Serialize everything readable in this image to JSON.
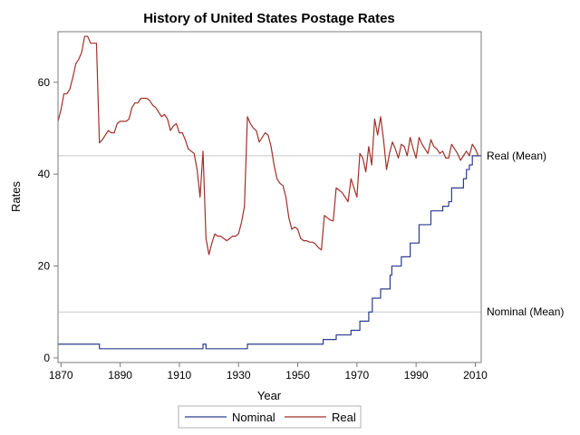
{
  "colors": {
    "nominal": "#2a3d8f",
    "real": "#a0302a",
    "reference": "#c8c8c8",
    "axis": "#7a7a7a"
  },
  "chart_data": {
    "type": "line",
    "title": "History of United States Postage Rates",
    "xlabel": "Year",
    "ylabel": "Rates",
    "xlim": [
      1869,
      2012
    ],
    "ylim": [
      -1,
      71
    ],
    "x_ticks": [
      1870,
      1890,
      1910,
      1930,
      1950,
      1970,
      1990,
      2010
    ],
    "y_ticks": [
      0,
      20,
      40,
      60
    ],
    "grid": false,
    "legend_position": "bottom",
    "reference_lines": [
      {
        "label": "Real (Mean)",
        "y": 44
      },
      {
        "label": "Nominal (Mean)",
        "y": 10
      }
    ],
    "series": [
      {
        "name": "Nominal",
        "color": "#2a3d8f",
        "step": true,
        "points": [
          [
            1869,
            3
          ],
          [
            1883,
            2
          ],
          [
            1917,
            2
          ],
          [
            1918,
            3
          ],
          [
            1919,
            2
          ],
          [
            1932,
            2
          ],
          [
            1933,
            3
          ],
          [
            1958,
            3
          ],
          [
            1958.6,
            4
          ],
          [
            1963,
            5
          ],
          [
            1968,
            6
          ],
          [
            1971,
            8
          ],
          [
            1974,
            10
          ],
          [
            1975.2,
            13
          ],
          [
            1978,
            15
          ],
          [
            1981.2,
            18
          ],
          [
            1981.8,
            20
          ],
          [
            1985,
            22
          ],
          [
            1988,
            25
          ],
          [
            1991,
            29
          ],
          [
            1995,
            32
          ],
          [
            1999,
            33
          ],
          [
            2001,
            34
          ],
          [
            2002,
            37
          ],
          [
            2006,
            39
          ],
          [
            2007,
            41
          ],
          [
            2008,
            42
          ],
          [
            2009,
            44
          ],
          [
            2012,
            44
          ]
        ]
      },
      {
        "name": "Real",
        "color": "#a0302a",
        "step": false,
        "points": [
          [
            1869,
            51.5
          ],
          [
            1870,
            54
          ],
          [
            1871,
            57.5
          ],
          [
            1872,
            57.5
          ],
          [
            1873,
            58.5
          ],
          [
            1874,
            61
          ],
          [
            1875,
            64
          ],
          [
            1876,
            65
          ],
          [
            1877,
            66.5
          ],
          [
            1878,
            70
          ],
          [
            1879,
            70
          ],
          [
            1880,
            68.5
          ],
          [
            1881,
            68.5
          ],
          [
            1882,
            68.5
          ],
          [
            1883,
            46.8
          ],
          [
            1884,
            47.5
          ],
          [
            1885,
            48.5
          ],
          [
            1886,
            49.5
          ],
          [
            1887,
            49
          ],
          [
            1888,
            49
          ],
          [
            1889,
            51
          ],
          [
            1890,
            51.5
          ],
          [
            1891,
            51.5
          ],
          [
            1892,
            51.5
          ],
          [
            1893,
            52
          ],
          [
            1894,
            54.5
          ],
          [
            1895,
            55.5
          ],
          [
            1896,
            55.5
          ],
          [
            1897,
            56.5
          ],
          [
            1898,
            56.5
          ],
          [
            1899,
            56.5
          ],
          [
            1900,
            56
          ],
          [
            1901,
            55
          ],
          [
            1902,
            54.5
          ],
          [
            1903,
            53.5
          ],
          [
            1904,
            52.5
          ],
          [
            1905,
            53
          ],
          [
            1906,
            52
          ],
          [
            1907,
            49.5
          ],
          [
            1908,
            50.5
          ],
          [
            1909,
            51
          ],
          [
            1910,
            49
          ],
          [
            1911,
            49
          ],
          [
            1912,
            47.5
          ],
          [
            1913,
            45.5
          ],
          [
            1914,
            45
          ],
          [
            1915,
            44.5
          ],
          [
            1916,
            41
          ],
          [
            1917,
            35
          ],
          [
            1918,
            45
          ],
          [
            1919,
            26
          ],
          [
            1920,
            22.5
          ],
          [
            1921,
            25
          ],
          [
            1922,
            27
          ],
          [
            1923,
            26.5
          ],
          [
            1924,
            26.5
          ],
          [
            1925,
            26
          ],
          [
            1926,
            25.5
          ],
          [
            1927,
            26
          ],
          [
            1928,
            26.5
          ],
          [
            1929,
            26.5
          ],
          [
            1930,
            27
          ],
          [
            1931,
            29.5
          ],
          [
            1932,
            33
          ],
          [
            1933,
            52.5
          ],
          [
            1934,
            51
          ],
          [
            1935,
            50
          ],
          [
            1936,
            49.5
          ],
          [
            1937,
            47
          ],
          [
            1938,
            48
          ],
          [
            1939,
            49
          ],
          [
            1940,
            48.5
          ],
          [
            1941,
            46
          ],
          [
            1942,
            42
          ],
          [
            1943,
            39
          ],
          [
            1944,
            38
          ],
          [
            1945,
            37.5
          ],
          [
            1946,
            35
          ],
          [
            1947,
            30.5
          ],
          [
            1948,
            28
          ],
          [
            1949,
            28.5
          ],
          [
            1950,
            28
          ],
          [
            1951,
            26
          ],
          [
            1952,
            25.5
          ],
          [
            1953,
            25.5
          ],
          [
            1954,
            25.2
          ],
          [
            1955,
            25.2
          ],
          [
            1956,
            24.8
          ],
          [
            1957,
            24
          ],
          [
            1958,
            23.5
          ],
          [
            1959,
            31
          ],
          [
            1960,
            30.5
          ],
          [
            1961,
            30
          ],
          [
            1962,
            29.8
          ],
          [
            1963,
            37
          ],
          [
            1964,
            36.5
          ],
          [
            1965,
            36
          ],
          [
            1966,
            35
          ],
          [
            1967,
            34
          ],
          [
            1968,
            39
          ],
          [
            1969,
            37
          ],
          [
            1970,
            35
          ],
          [
            1971,
            44.5
          ],
          [
            1972,
            43.5
          ],
          [
            1973,
            40.5
          ],
          [
            1974,
            46
          ],
          [
            1975,
            42
          ],
          [
            1976,
            52
          ],
          [
            1977,
            48.5
          ],
          [
            1978,
            52.5
          ],
          [
            1979,
            47.5
          ],
          [
            1980,
            41
          ],
          [
            1981,
            44.5
          ],
          [
            1982,
            47
          ],
          [
            1983,
            45.5
          ],
          [
            1984,
            43.5
          ],
          [
            1985,
            46.5
          ],
          [
            1986,
            46
          ],
          [
            1987,
            44
          ],
          [
            1988,
            48
          ],
          [
            1989,
            45.5
          ],
          [
            1990,
            43.5
          ],
          [
            1991,
            48
          ],
          [
            1992,
            46.5
          ],
          [
            1993,
            45.5
          ],
          [
            1994,
            44.5
          ],
          [
            1995,
            47.5
          ],
          [
            1996,
            46
          ],
          [
            1997,
            45.5
          ],
          [
            1998,
            44.5
          ],
          [
            1999,
            45
          ],
          [
            2000,
            43.5
          ],
          [
            2001,
            43.5
          ],
          [
            2002,
            46.5
          ],
          [
            2003,
            45.5
          ],
          [
            2004,
            44.5
          ],
          [
            2005,
            43
          ],
          [
            2006,
            44
          ],
          [
            2007,
            45
          ],
          [
            2008,
            44
          ],
          [
            2009,
            46.5
          ],
          [
            2010,
            45.5
          ],
          [
            2011,
            44
          ]
        ]
      }
    ]
  }
}
